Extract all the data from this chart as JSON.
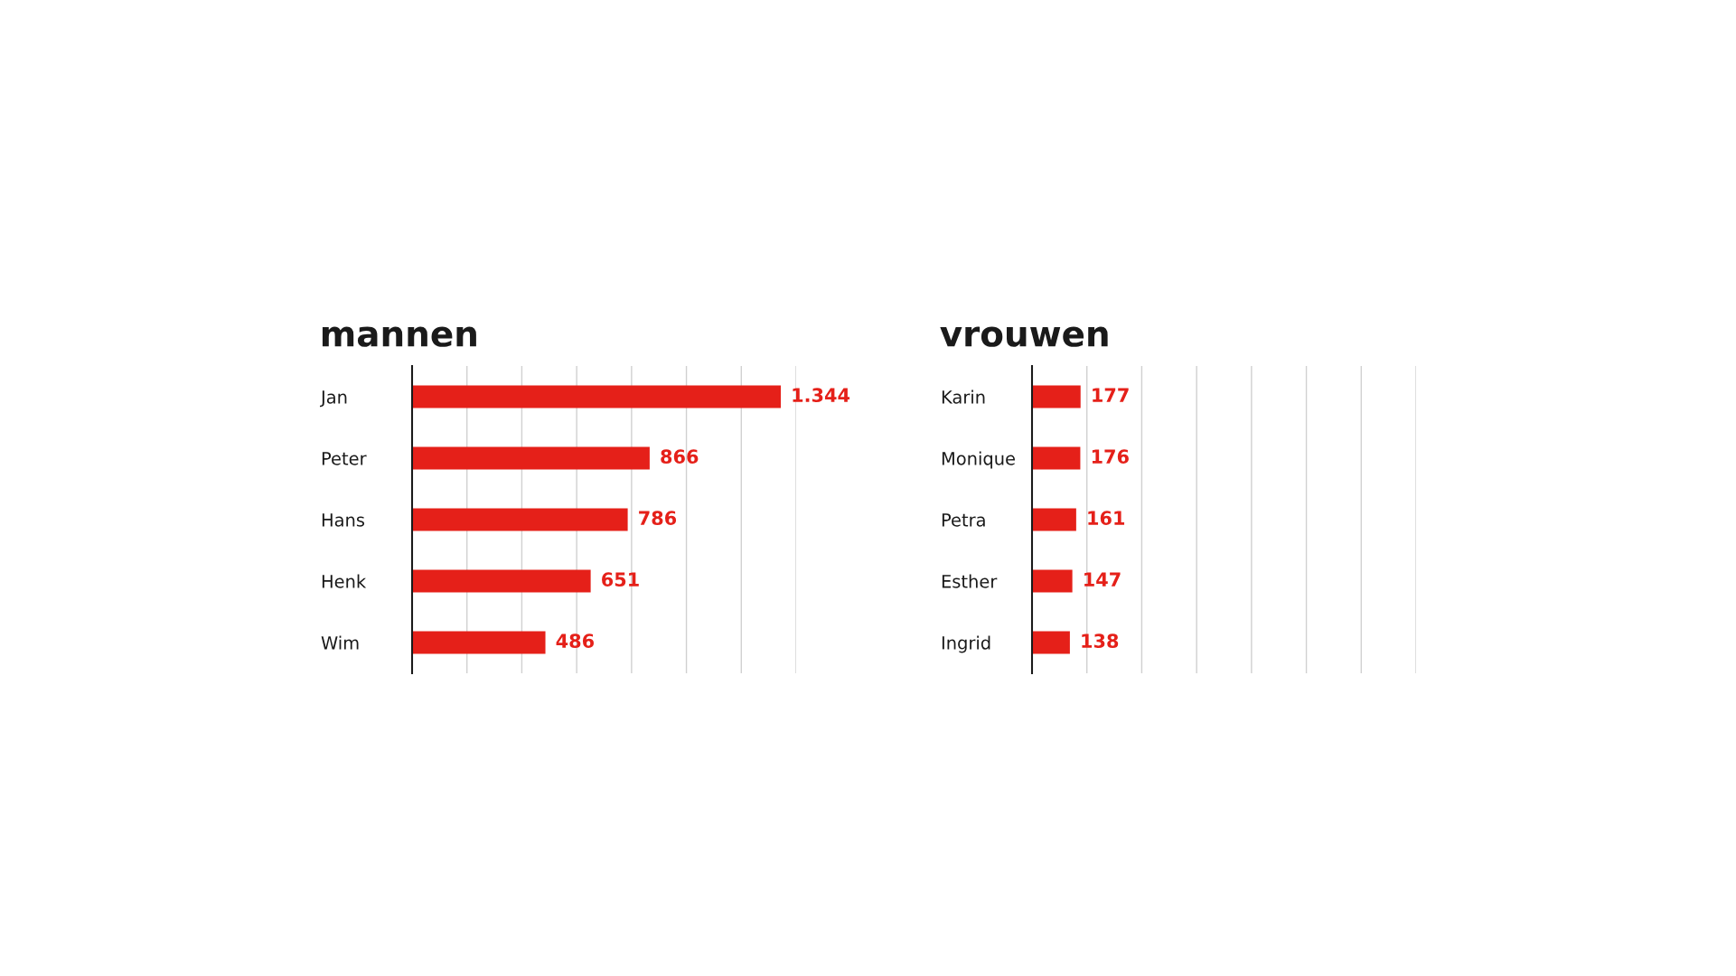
{
  "chart_data": [
    {
      "type": "bar",
      "orientation": "horizontal",
      "title": "mannen",
      "categories": [
        "Jan",
        "Peter",
        "Hans",
        "Henk",
        "Wim"
      ],
      "values": [
        1344,
        866,
        786,
        651,
        486
      ],
      "value_labels": [
        "1.344",
        "866",
        "786",
        "651",
        "486"
      ],
      "color": "#e52019",
      "xlim": [
        0,
        1400
      ],
      "xticks": [
        {
          "value": 0,
          "label": null
        },
        {
          "value": 200,
          "label": null
        },
        {
          "value": 400,
          "label": null
        },
        {
          "value": 600,
          "label": null
        },
        {
          "value": 800,
          "label": null
        },
        {
          "value": 1000,
          "label": null
        },
        {
          "value": 1200,
          "label": null
        },
        {
          "value": 1400,
          "label": null
        }
      ],
      "grid": "x",
      "tick_labels": "y",
      "legend": false
    },
    {
      "type": "bar",
      "orientation": "horizontal",
      "title": "vrouwen",
      "categories": [
        "Karin",
        "Monique",
        "Petra",
        "Esther",
        "Ingrid"
      ],
      "values": [
        177,
        176,
        161,
        147,
        138
      ],
      "value_labels": [
        "177",
        "176",
        "161",
        "147",
        "138"
      ],
      "color": "#e52019",
      "xlim": [
        0,
        1400
      ],
      "xticks": [
        {
          "value": 0,
          "label": null
        },
        {
          "value": 200,
          "label": null
        },
        {
          "value": 400,
          "label": null
        },
        {
          "value": 600,
          "label": null
        },
        {
          "value": 800,
          "label": null
        },
        {
          "value": 1000,
          "label": null
        },
        {
          "value": 1200,
          "label": null
        },
        {
          "value": 1400,
          "label": null
        }
      ],
      "grid": "x",
      "tick_labels": "y",
      "legend": false
    }
  ]
}
